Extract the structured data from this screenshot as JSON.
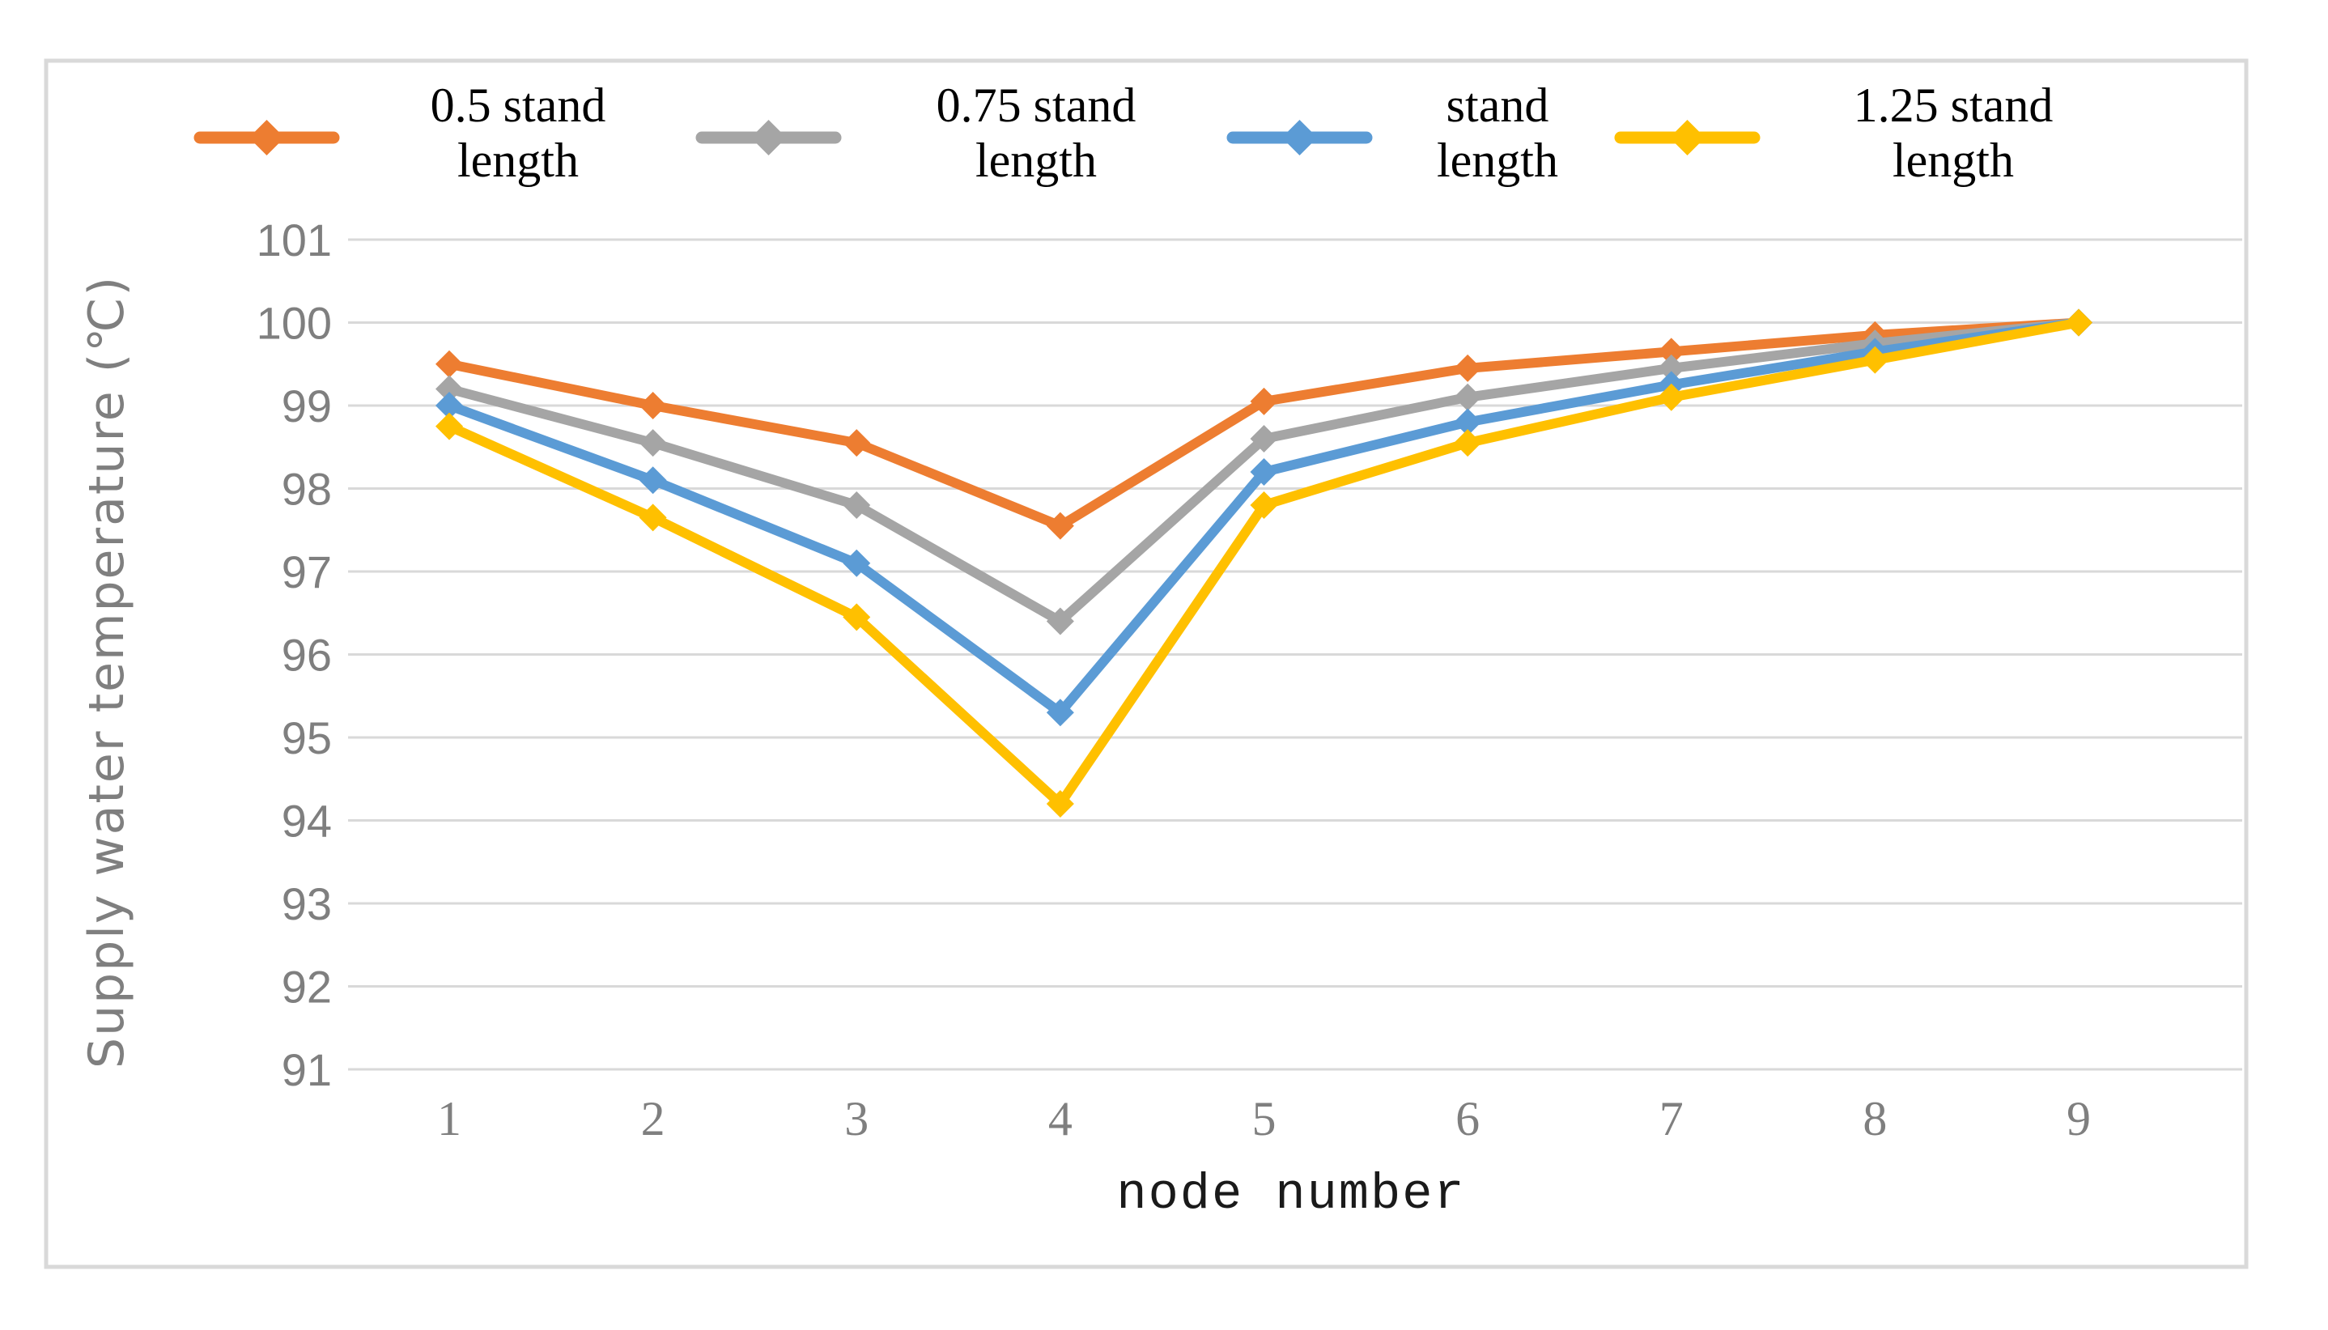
{
  "figure": {
    "background": "#ffffff",
    "border_color": "#d9d9d9",
    "gridline_color": "#d9d9d9",
    "axis_text_color": "#7f7f7f"
  },
  "legend": {
    "position": "top",
    "entries": [
      {
        "label": "0.5 stand length",
        "lines": [
          "0.5 stand",
          "length"
        ],
        "color": "#ED7D31"
      },
      {
        "label": "0.75 stand length",
        "lines": [
          "0.75 stand",
          "length"
        ],
        "color": "#A5A5A5"
      },
      {
        "label": "stand length",
        "lines": [
          "stand",
          "length"
        ],
        "color": "#5B9BD5"
      },
      {
        "label": "1.25 stand length",
        "lines": [
          "1.25 stand",
          "length"
        ],
        "color": "#FFC000"
      }
    ]
  },
  "chart_data": {
    "type": "line",
    "title": "",
    "xlabel": "node number",
    "ylabel": "Supply water temperature (℃)",
    "categories": [
      1,
      2,
      3,
      4,
      5,
      6,
      7,
      8,
      9
    ],
    "ylim": [
      91,
      101
    ],
    "yticks": [
      91,
      92,
      93,
      94,
      95,
      96,
      97,
      98,
      99,
      100,
      101
    ],
    "grid": "horizontal",
    "legend_position": "top",
    "marker": "diamond",
    "series": [
      {
        "name": "0.5 stand length",
        "color": "#ED7D31",
        "values": [
          99.5,
          99.0,
          98.55,
          97.55,
          99.05,
          99.45,
          99.65,
          99.85,
          100.0
        ]
      },
      {
        "name": "0.75 stand length",
        "color": "#A5A5A5",
        "values": [
          99.2,
          98.55,
          97.8,
          96.4,
          98.6,
          99.1,
          99.45,
          99.75,
          100.0
        ]
      },
      {
        "name": "stand length",
        "color": "#5B9BD5",
        "values": [
          99.0,
          98.1,
          97.1,
          95.3,
          98.2,
          98.8,
          99.25,
          99.65,
          100.0
        ]
      },
      {
        "name": "1.25 stand length",
        "color": "#FFC000",
        "values": [
          98.75,
          97.65,
          96.45,
          94.2,
          97.8,
          98.55,
          99.1,
          99.55,
          100.0
        ]
      }
    ]
  }
}
